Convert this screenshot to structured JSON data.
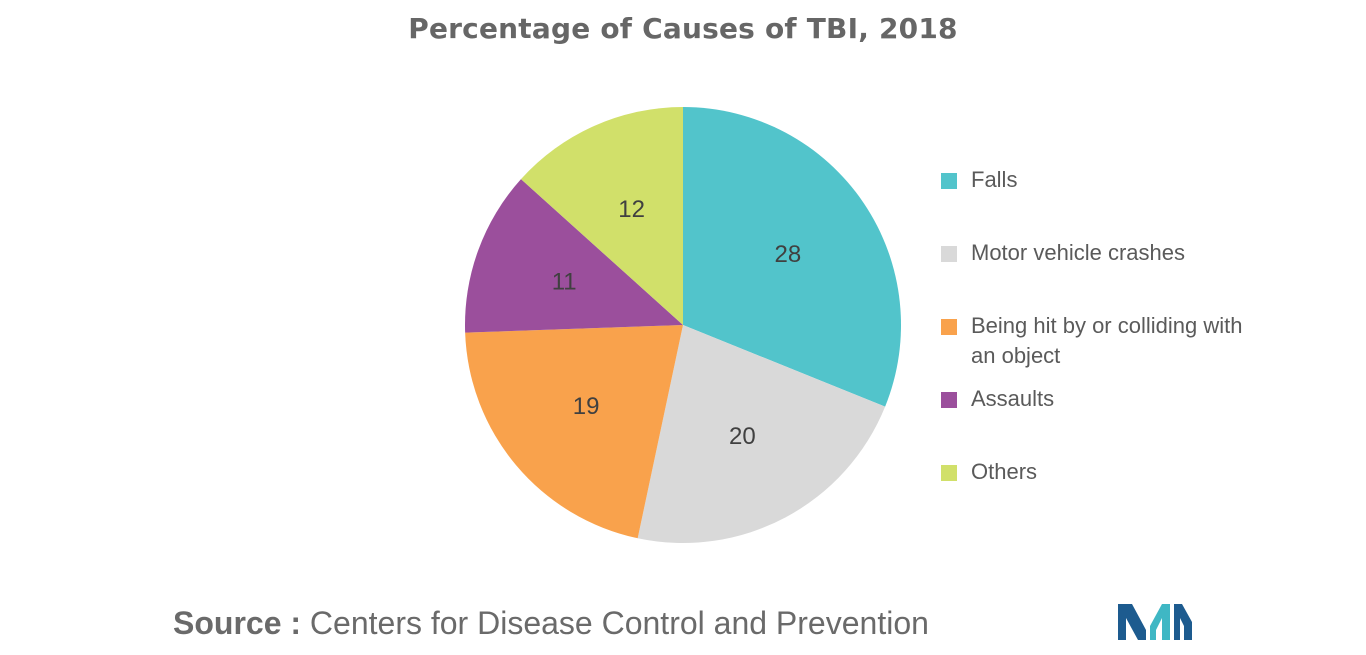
{
  "chart_data": {
    "type": "pie",
    "title": "Percentage of Causes of TBI, 2018",
    "categories": [
      "Falls",
      "Motor vehicle crashes",
      "Being hit by or colliding with an object",
      "Assaults",
      "Others"
    ],
    "values": [
      28,
      20,
      19,
      11,
      12
    ],
    "colors": [
      "#52c4cb",
      "#d9d9d9",
      "#f9a24c",
      "#9b4f9c",
      "#d1e06a"
    ],
    "legend_position": "right",
    "start_angle_deg": 0,
    "direction": "clockwise"
  },
  "source": {
    "prefix": "Source :",
    "text": "Centers for Disease Control and Prevention"
  },
  "logo": {
    "icon": "mordor-intelligence-logo-icon",
    "colors": [
      "#1d5b8f",
      "#3fb7c4"
    ]
  }
}
